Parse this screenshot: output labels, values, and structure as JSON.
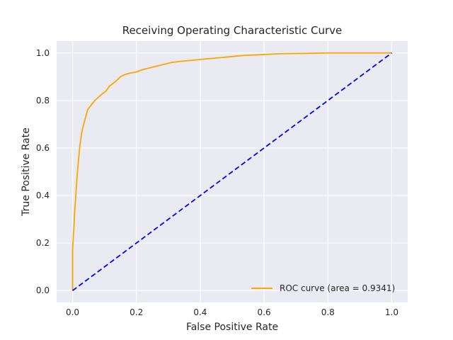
{
  "chart_data": {
    "type": "line",
    "title": "Receiving Operating Characteristic Curve",
    "xlabel": "False Positive Rate",
    "ylabel": "True Positive Rate",
    "xlim": [
      -0.05,
      1.05
    ],
    "ylim": [
      -0.05,
      1.05
    ],
    "xticks": [
      0.0,
      0.2,
      0.4,
      0.6,
      0.8,
      1.0
    ],
    "yticks": [
      0.0,
      0.2,
      0.4,
      0.6,
      0.8,
      1.0
    ],
    "xtick_labels": [
      "0.0",
      "0.2",
      "0.4",
      "0.6",
      "0.8",
      "1.0"
    ],
    "ytick_labels": [
      "0.0",
      "0.2",
      "0.4",
      "0.6",
      "0.8",
      "1.0"
    ],
    "grid": true,
    "legend_position": "lower-right",
    "background_color": "#eaeaf2",
    "grid_color": "#ffffff",
    "series": [
      {
        "name": "ROC curve (area = 0.9341)",
        "color": "#ffa500",
        "style": "solid",
        "x": [
          0.0,
          0.0,
          0.002,
          0.004,
          0.006,
          0.008,
          0.01,
          0.012,
          0.014,
          0.016,
          0.018,
          0.02,
          0.022,
          0.025,
          0.028,
          0.031,
          0.035,
          0.039,
          0.043,
          0.047,
          0.052,
          0.058,
          0.064,
          0.07,
          0.078,
          0.086,
          0.095,
          0.105,
          0.115,
          0.125,
          0.135,
          0.15,
          0.165,
          0.18,
          0.2,
          0.22,
          0.25,
          0.28,
          0.31,
          0.34,
          0.38,
          0.42,
          0.46,
          0.5,
          0.54,
          0.58,
          0.62,
          0.66,
          0.72,
          0.8,
          0.85,
          0.9,
          1.0
        ],
        "y": [
          0.0,
          0.17,
          0.22,
          0.26,
          0.32,
          0.36,
          0.4,
          0.44,
          0.48,
          0.51,
          0.54,
          0.57,
          0.6,
          0.63,
          0.66,
          0.68,
          0.7,
          0.72,
          0.74,
          0.76,
          0.77,
          0.78,
          0.79,
          0.8,
          0.81,
          0.82,
          0.83,
          0.84,
          0.86,
          0.87,
          0.88,
          0.9,
          0.91,
          0.915,
          0.92,
          0.93,
          0.94,
          0.95,
          0.96,
          0.965,
          0.97,
          0.975,
          0.98,
          0.985,
          0.99,
          0.992,
          0.995,
          0.997,
          0.998,
          1.0,
          1.0,
          1.0,
          1.0
        ]
      },
      {
        "name": "",
        "color": "#0000ff",
        "style": "dashed",
        "x": [
          0.0,
          1.0
        ],
        "y": [
          0.0,
          1.0
        ]
      }
    ]
  }
}
